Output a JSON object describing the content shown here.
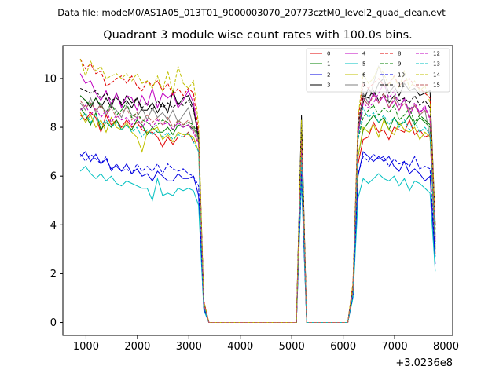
{
  "figure": {
    "suptitle": "Data file: modeM0/AS1A05_013T01_9000003070_20773cztM0_level2_quad_clean.evt"
  },
  "chart_data": {
    "type": "line",
    "title": "Quadrant 3 module wise count rates with 100.0s bins.",
    "xlabel": "",
    "ylabel": "",
    "x_offset_label": "+3.0236e8",
    "xlim": [
      550,
      8130
    ],
    "ylim": [
      -0.53,
      11.35
    ],
    "x_ticks": [
      1000,
      2000,
      3000,
      4000,
      5000,
      6000,
      7000,
      8000
    ],
    "x_tick_labels": [
      "1000",
      "2000",
      "3000",
      "4000",
      "5000",
      "6000",
      "7000",
      "8000"
    ],
    "y_ticks": [
      0,
      2,
      4,
      6,
      8,
      10
    ],
    "y_tick_labels": [
      "0",
      "2",
      "4",
      "6",
      "8",
      "10"
    ],
    "grid": false,
    "legend_position": "top-right",
    "x": [
      890,
      990,
      1090,
      1190,
      1290,
      1390,
      1490,
      1590,
      1690,
      1790,
      1890,
      1990,
      2090,
      2190,
      2290,
      2390,
      2490,
      2590,
      2690,
      2790,
      2890,
      2990,
      3090,
      3190,
      3290,
      3390,
      3490,
      3590,
      3690,
      3790,
      3890,
      3990,
      4090,
      4190,
      4290,
      4390,
      4490,
      4590,
      4690,
      4790,
      4890,
      4990,
      5090,
      5190,
      5290,
      5390,
      5490,
      5590,
      5690,
      5790,
      5890,
      5990,
      6090,
      6190,
      6290,
      6390,
      6490,
      6590,
      6690,
      6790,
      6890,
      6990,
      7090,
      7190,
      7290,
      7390,
      7490,
      7590,
      7690,
      7790
    ],
    "series": [
      {
        "name": "0",
        "color": "#e00000",
        "dash": "solid",
        "values": [
          8.5,
          8.3,
          8.6,
          8.4,
          7.8,
          8.5,
          8.1,
          8.3,
          8.0,
          8.3,
          8.0,
          8.2,
          7.9,
          7.8,
          7.8,
          7.6,
          7.2,
          7.6,
          7.3,
          7.6,
          7.6,
          7.8,
          7.4,
          7.5,
          0.8,
          0,
          0,
          0,
          0,
          0,
          0,
          0,
          0,
          0,
          0,
          0,
          0,
          0,
          0,
          0,
          0,
          0,
          0,
          7.8,
          0,
          0,
          0,
          0,
          0,
          0,
          0,
          0,
          0,
          1.2,
          6.5,
          7.5,
          7.6,
          8.2,
          7.8,
          7.9,
          7.5,
          8.0,
          7.9,
          7.8,
          8.3,
          7.7,
          7.9,
          7.6,
          7.7,
          2.8
        ]
      },
      {
        "name": "1",
        "color": "#008000",
        "dash": "solid",
        "values": [
          8.8,
          8.5,
          8.1,
          8.6,
          7.9,
          8.2,
          8.0,
          8.3,
          7.9,
          8.1,
          7.9,
          8.3,
          8.1,
          7.7,
          8.0,
          7.8,
          7.8,
          8.0,
          7.7,
          8.1,
          8.0,
          8.1,
          7.9,
          7.8,
          0.7,
          0,
          0,
          0,
          0,
          0,
          0,
          0,
          0,
          0,
          0,
          0,
          0,
          0,
          0,
          0,
          0,
          0,
          0,
          7.0,
          0,
          0,
          0,
          0,
          0,
          0,
          0,
          0,
          0,
          1.3,
          6.8,
          7.9,
          8.2,
          8.5,
          8.2,
          8.4,
          7.9,
          8.4,
          8.1,
          8.2,
          8.5,
          8.1,
          8.4,
          8.2,
          8.0,
          3.0
        ]
      },
      {
        "name": "2",
        "color": "#0000e0",
        "dash": "solid",
        "values": [
          6.8,
          7.0,
          6.6,
          6.9,
          6.5,
          6.7,
          6.3,
          6.4,
          6.2,
          6.5,
          6.1,
          6.3,
          6.0,
          6.1,
          5.8,
          6.2,
          6.0,
          5.8,
          5.8,
          6.1,
          5.9,
          5.9,
          6.0,
          5.2,
          0.6,
          0,
          0,
          0,
          0,
          0,
          0,
          0,
          0,
          0,
          0,
          0,
          0,
          0,
          0,
          0,
          0,
          0,
          0,
          6.0,
          0,
          0,
          0,
          0,
          0,
          0,
          0,
          0,
          0,
          1.1,
          6.0,
          7.0,
          6.8,
          6.6,
          6.8,
          6.6,
          6.8,
          6.4,
          6.2,
          6.6,
          6.1,
          6.3,
          6.1,
          5.8,
          6.0,
          2.4
        ]
      },
      {
        "name": "3",
        "color": "#000000",
        "dash": "solid",
        "values": [
          9.3,
          9.1,
          8.8,
          9.2,
          8.8,
          9.2,
          8.8,
          9.4,
          8.9,
          9.1,
          8.8,
          9.2,
          8.7,
          8.7,
          9.0,
          8.6,
          9.0,
          8.6,
          9.5,
          8.9,
          9.2,
          9.3,
          8.8,
          7.5,
          0.7,
          0,
          0,
          0,
          0,
          0,
          0,
          0,
          0,
          0,
          0,
          0,
          0,
          0,
          0,
          0,
          0,
          0,
          0,
          8.5,
          0,
          0,
          0,
          0,
          0,
          0,
          0,
          0,
          0,
          1.4,
          7.8,
          9.0,
          9.6,
          9.3,
          9.8,
          10.0,
          9.4,
          9.7,
          9.3,
          9.8,
          9.5,
          9.6,
          9.3,
          9.4,
          9.5,
          4.0
        ]
      },
      {
        "name": "4",
        "color": "#c000c0",
        "dash": "solid",
        "values": [
          10.2,
          9.8,
          9.9,
          9.4,
          9.1,
          9.5,
          8.9,
          9.4,
          8.8,
          9.3,
          9.2,
          8.7,
          9.3,
          8.9,
          9.6,
          8.8,
          9.4,
          9.2,
          9.4,
          8.8,
          9.1,
          9.5,
          9.0,
          7.6,
          0.8,
          0,
          0,
          0,
          0,
          0,
          0,
          0,
          0,
          0,
          0,
          0,
          0,
          0,
          0,
          0,
          0,
          0,
          0,
          7.4,
          0,
          0,
          0,
          0,
          0,
          0,
          0,
          0,
          0,
          1.5,
          8.0,
          9.2,
          8.9,
          9.4,
          9.0,
          9.3,
          8.8,
          9.1,
          8.7,
          9.2,
          8.5,
          8.9,
          8.6,
          8.8,
          8.4,
          3.5
        ]
      },
      {
        "name": "5",
        "color": "#00c0c0",
        "dash": "solid",
        "values": [
          6.2,
          6.4,
          6.1,
          5.9,
          6.1,
          5.8,
          6.0,
          5.7,
          5.6,
          5.8,
          5.7,
          5.6,
          5.5,
          5.5,
          5.0,
          5.9,
          5.2,
          5.3,
          5.2,
          5.5,
          5.4,
          5.5,
          5.4,
          4.8,
          0.5,
          0,
          0,
          0,
          0,
          0,
          0,
          0,
          0,
          0,
          0,
          0,
          0,
          0,
          0,
          0,
          0,
          0,
          0,
          5.8,
          0,
          0,
          0,
          0,
          0,
          0,
          0,
          0,
          0,
          1.0,
          5.1,
          5.9,
          5.7,
          5.9,
          6.1,
          5.9,
          5.8,
          6.0,
          5.6,
          5.9,
          5.4,
          5.8,
          5.7,
          5.5,
          5.3,
          2.1
        ]
      },
      {
        "name": "6",
        "color": "#c0c000",
        "dash": "solid",
        "values": [
          8.6,
          8.2,
          8.5,
          8.0,
          8.3,
          7.8,
          8.4,
          8.0,
          7.9,
          8.2,
          7.8,
          7.6,
          7.0,
          7.8,
          7.9,
          8.0,
          7.5,
          7.7,
          7.4,
          7.8,
          7.7,
          7.7,
          7.6,
          7.0,
          0.7,
          0,
          0,
          0,
          0,
          0,
          0,
          0,
          0,
          0,
          0,
          0,
          0,
          0,
          0,
          0,
          0,
          0,
          0,
          6.5,
          0,
          0,
          0,
          0,
          0,
          0,
          0,
          0,
          0,
          1.2,
          6.8,
          8.0,
          7.8,
          8.1,
          7.6,
          8.3,
          7.9,
          7.7,
          8.2,
          7.9,
          7.8,
          8.0,
          7.5,
          7.8,
          7.6,
          3.1
        ]
      },
      {
        "name": "7",
        "color": "#808080",
        "dash": "solid",
        "values": [
          9.0,
          8.7,
          9.2,
          8.6,
          9.0,
          8.5,
          8.9,
          8.7,
          8.4,
          8.9,
          8.5,
          8.4,
          8.8,
          8.3,
          8.8,
          8.4,
          8.6,
          8.3,
          8.7,
          8.2,
          8.5,
          8.8,
          8.0,
          7.5,
          0.8,
          0,
          0,
          0,
          0,
          0,
          0,
          0,
          0,
          0,
          0,
          0,
          0,
          0,
          0,
          0,
          0,
          0,
          0,
          7.6,
          0,
          0,
          0,
          0,
          0,
          0,
          0,
          0,
          0,
          1.4,
          8.0,
          9.4,
          9.0,
          9.8,
          10.5,
          10.0,
          9.0,
          9.3,
          8.9,
          9.1,
          8.7,
          8.9,
          8.5,
          8.7,
          7.6,
          3.6
        ]
      },
      {
        "name": "8",
        "color": "#e00000",
        "dash": "dashed",
        "values": [
          10.8,
          10.4,
          10.6,
          10.2,
          10.3,
          9.7,
          9.8,
          10.0,
          10.1,
          9.8,
          10.1,
          9.7,
          9.5,
          9.9,
          9.7,
          9.9,
          9.5,
          9.8,
          9.3,
          9.6,
          9.3,
          9.6,
          9.4,
          7.8,
          0.9,
          0,
          0,
          0,
          0,
          0,
          0,
          0,
          0,
          0,
          0,
          0,
          0,
          0,
          0,
          0,
          0,
          0,
          0,
          8.0,
          0,
          0,
          0,
          0,
          0,
          0,
          0,
          0,
          0,
          1.6,
          8.3,
          9.8,
          9.6,
          9.8,
          10.0,
          9.7,
          9.8,
          10.1,
          9.7,
          9.9,
          10.0,
          9.7,
          9.6,
          9.4,
          9.2,
          3.9
        ]
      },
      {
        "name": "9",
        "color": "#008000",
        "dash": "dashed",
        "values": [
          9.3,
          9.1,
          8.9,
          9.2,
          8.9,
          8.6,
          9.0,
          8.5,
          8.7,
          9.0,
          8.4,
          8.6,
          8.3,
          8.2,
          8.0,
          8.1,
          8.3,
          8.2,
          7.9,
          8.3,
          8.1,
          8.2,
          8.1,
          7.6,
          0.8,
          0,
          0,
          0,
          0,
          0,
          0,
          0,
          0,
          0,
          0,
          0,
          0,
          0,
          0,
          0,
          0,
          0,
          0,
          7.3,
          0,
          0,
          0,
          0,
          0,
          0,
          0,
          0,
          0,
          1.3,
          7.5,
          8.4,
          8.7,
          8.9,
          8.5,
          8.8,
          8.6,
          8.9,
          8.3,
          8.5,
          8.8,
          8.2,
          8.5,
          8.3,
          8.1,
          3.3
        ]
      },
      {
        "name": "10",
        "color": "#0000e0",
        "dash": "dashed",
        "values": [
          6.9,
          6.6,
          6.9,
          6.7,
          6.5,
          6.8,
          6.2,
          6.5,
          6.2,
          6.3,
          6.1,
          6.5,
          6.2,
          6.4,
          6.2,
          6.5,
          6.1,
          6.5,
          6.3,
          6.2,
          6.3,
          6.1,
          6.0,
          5.6,
          0.6,
          0,
          0,
          0,
          0,
          0,
          0,
          0,
          0,
          0,
          0,
          0,
          0,
          0,
          0,
          0,
          0,
          0,
          0,
          6.2,
          0,
          0,
          0,
          0,
          0,
          0,
          0,
          0,
          0,
          1.1,
          6.1,
          6.8,
          6.6,
          6.9,
          6.7,
          6.8,
          6.4,
          6.7,
          6.5,
          6.6,
          6.4,
          6.8,
          6.3,
          6.4,
          6.3,
          2.7
        ]
      },
      {
        "name": "11",
        "color": "#000000",
        "dash": "dashed",
        "values": [
          9.6,
          9.5,
          9.4,
          9.5,
          9.2,
          9.4,
          9.1,
          9.2,
          9.0,
          9.3,
          9.0,
          9.2,
          8.8,
          9.0,
          8.7,
          9.1,
          8.8,
          9.0,
          8.8,
          9.0,
          8.9,
          9.1,
          8.7,
          7.7,
          0.8,
          0,
          0,
          0,
          0,
          0,
          0,
          0,
          0,
          0,
          0,
          0,
          0,
          0,
          0,
          0,
          0,
          0,
          0,
          8.1,
          0,
          0,
          0,
          0,
          0,
          0,
          0,
          0,
          0,
          1.4,
          8.1,
          9.3,
          9.2,
          9.5,
          9.1,
          9.4,
          9.0,
          9.3,
          9.1,
          9.2,
          9.0,
          9.3,
          8.9,
          9.1,
          8.8,
          3.8
        ]
      },
      {
        "name": "12",
        "color": "#c000c0",
        "dash": "dashed",
        "values": [
          8.7,
          8.9,
          8.5,
          8.8,
          8.4,
          8.7,
          8.2,
          8.5,
          8.3,
          8.4,
          8.1,
          8.4,
          8.0,
          8.3,
          8.0,
          8.3,
          8.1,
          8.2,
          7.9,
          8.2,
          8.0,
          8.1,
          7.8,
          7.3,
          0.7,
          0,
          0,
          0,
          0,
          0,
          0,
          0,
          0,
          0,
          0,
          0,
          0,
          0,
          0,
          0,
          0,
          0,
          0,
          7.1,
          0,
          0,
          0,
          0,
          0,
          0,
          0,
          0,
          0,
          1.3,
          7.7,
          9.0,
          8.8,
          9.0,
          9.4,
          9.8,
          9.2,
          9.5,
          8.9,
          9.1,
          8.7,
          9.0,
          8.6,
          8.9,
          8.3,
          3.4
        ]
      },
      {
        "name": "13",
        "color": "#00c0c0",
        "dash": "dashed",
        "values": [
          8.3,
          8.6,
          8.2,
          8.5,
          8.1,
          8.3,
          8.0,
          8.2,
          7.9,
          8.1,
          7.8,
          8.0,
          7.6,
          7.9,
          7.7,
          7.9,
          7.6,
          7.8,
          7.5,
          7.7,
          7.6,
          7.8,
          7.4,
          7.0,
          0.7,
          0,
          0,
          0,
          0,
          0,
          0,
          0,
          0,
          0,
          0,
          0,
          0,
          0,
          0,
          0,
          0,
          0,
          0,
          6.8,
          0,
          0,
          0,
          0,
          0,
          0,
          0,
          0,
          0,
          1.2,
          7.5,
          8.8,
          8.4,
          8.6,
          8.2,
          8.5,
          8.1,
          8.4,
          8.0,
          8.3,
          7.9,
          8.2,
          7.8,
          8.0,
          7.7,
          3.2
        ]
      },
      {
        "name": "14",
        "color": "#c0c000",
        "dash": "dashed",
        "values": [
          10.8,
          10.1,
          10.7,
          10.3,
          10.5,
          10.0,
          10.1,
          10.2,
          10.0,
          10.2,
          9.9,
          10.2,
          9.8,
          9.9,
          9.6,
          10.1,
          9.5,
          10.3,
          9.4,
          10.5,
          9.8,
          9.6,
          9.9,
          8.1,
          0.9,
          0,
          0,
          0,
          0,
          0,
          0,
          0,
          0,
          0,
          0,
          0,
          0,
          0,
          0,
          0,
          0,
          0,
          0,
          8.3,
          0,
          0,
          0,
          0,
          0,
          0,
          0,
          0,
          0,
          1.6,
          8.4,
          10.2,
          9.8,
          10.0,
          10.5,
          10.2,
          9.7,
          10.1,
          9.6,
          10.3,
          9.6,
          9.9,
          9.5,
          9.7,
          9.0,
          4.1
        ]
      },
      {
        "name": "15",
        "color": "#c06060",
        "dash": "dashed",
        "values": [
          9.1,
          8.8,
          9.0,
          8.7,
          8.9,
          8.5,
          8.8,
          8.4,
          8.6,
          8.8,
          8.3,
          8.6,
          8.2,
          8.5,
          8.2,
          8.4,
          8.1,
          8.4,
          8.0,
          8.3,
          8.1,
          8.3,
          7.9,
          7.4,
          0.8,
          0,
          0,
          0,
          0,
          0,
          0,
          0,
          0,
          0,
          0,
          0,
          0,
          0,
          0,
          0,
          0,
          0,
          0,
          7.5,
          0,
          0,
          0,
          0,
          0,
          0,
          0,
          0,
          0,
          1.3,
          7.9,
          9.2,
          8.9,
          9.3,
          9.0,
          9.4,
          8.8,
          9.2,
          8.7,
          9.0,
          8.6,
          8.9,
          8.5,
          8.7,
          8.4,
          3.5
        ]
      }
    ]
  }
}
